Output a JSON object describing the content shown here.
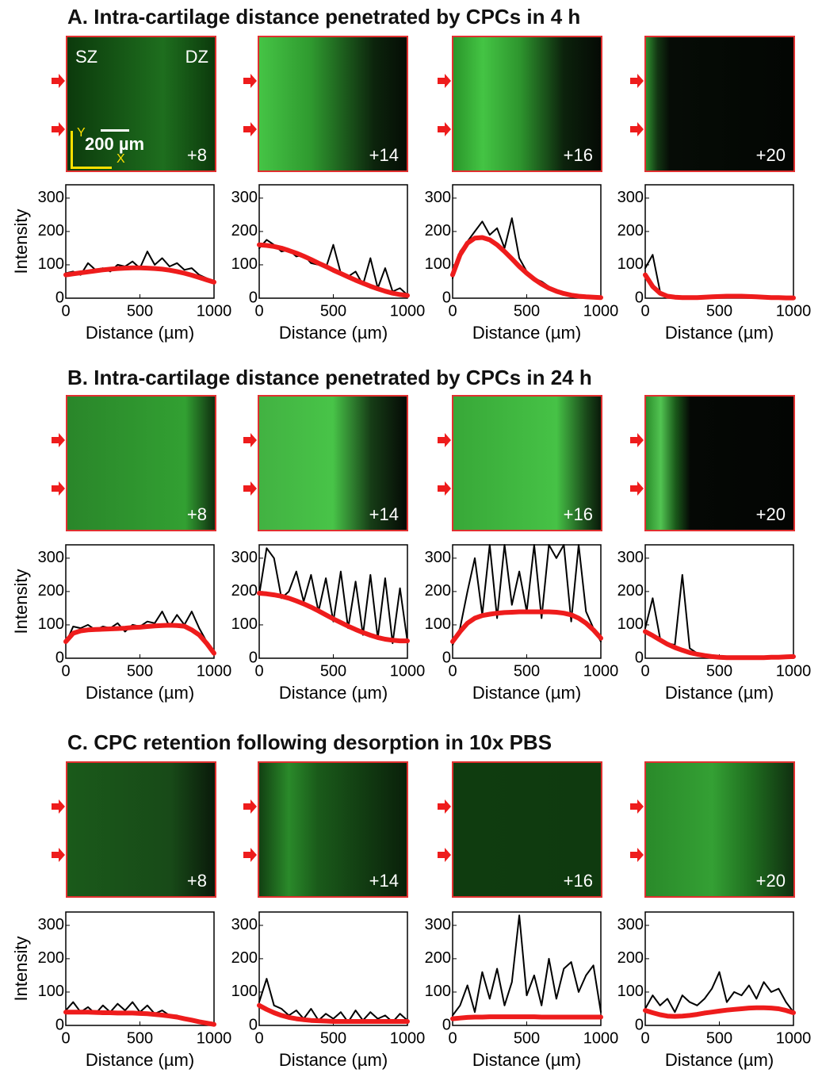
{
  "sections": [
    {
      "title": "A. Intra-cartilage distance penetrated by CPCs in 4 h",
      "images": [
        {
          "number": "+8",
          "zone_left": "SZ",
          "zone_right": "DZ",
          "scale_bar": "200 µm",
          "axis_x": "X",
          "axis_y": "Y"
        },
        {
          "number": "+14"
        },
        {
          "number": "+16"
        },
        {
          "number": "+20"
        }
      ]
    },
    {
      "title": "B. Intra-cartilage distance penetrated by CPCs in 24 h",
      "images": [
        {
          "number": "+8"
        },
        {
          "number": "+14"
        },
        {
          "number": "+16"
        },
        {
          "number": "+20"
        }
      ]
    },
    {
      "title": "C. CPC retention following desorption in 10x PBS",
      "images": [
        {
          "number": "+8"
        },
        {
          "number": "+14"
        },
        {
          "number": "+16"
        },
        {
          "number": "+20"
        }
      ]
    }
  ],
  "chart_data": [
    {
      "type": "line",
      "x_label": "Distance (µm)",
      "y_label": "Intensity",
      "xlim": [
        0,
        1000
      ],
      "xticks": [
        0,
        500,
        1000
      ],
      "ylim": [
        0,
        340
      ],
      "yticks": [
        0,
        100,
        200,
        300
      ],
      "x": [
        0,
        50,
        100,
        150,
        200,
        250,
        300,
        350,
        400,
        450,
        500,
        550,
        600,
        650,
        700,
        750,
        800,
        850,
        900,
        950,
        1000
      ],
      "series": [
        {
          "color": "#000000",
          "values": [
            75,
            80,
            70,
            105,
            85,
            90,
            80,
            100,
            95,
            110,
            90,
            140,
            100,
            120,
            95,
            105,
            85,
            90,
            70,
            60,
            50
          ]
        },
        {
          "color": "#ee1c1c",
          "values": [
            70,
            73,
            76,
            79,
            82,
            85,
            87,
            89,
            90,
            91,
            91,
            90,
            89,
            87,
            84,
            80,
            75,
            69,
            62,
            55,
            48
          ]
        }
      ]
    },
    {
      "type": "line",
      "x_label": "Distance (µm)",
      "xlim": [
        0,
        1000
      ],
      "xticks": [
        0,
        500,
        1000
      ],
      "ylim": [
        0,
        340
      ],
      "yticks": [
        0,
        100,
        200,
        300
      ],
      "x": [
        0,
        50,
        100,
        150,
        200,
        250,
        300,
        350,
        400,
        450,
        500,
        550,
        600,
        650,
        700,
        750,
        800,
        850,
        900,
        950,
        1000
      ],
      "series": [
        {
          "color": "#000000",
          "values": [
            150,
            175,
            160,
            140,
            145,
            125,
            130,
            105,
            100,
            90,
            160,
            75,
            65,
            80,
            40,
            120,
            30,
            90,
            20,
            30,
            10
          ]
        },
        {
          "color": "#ee1c1c",
          "values": [
            160,
            158,
            155,
            150,
            143,
            135,
            126,
            116,
            105,
            95,
            84,
            74,
            64,
            54,
            45,
            36,
            28,
            21,
            15,
            11,
            8
          ]
        }
      ]
    },
    {
      "type": "line",
      "x_label": "Distance (µm)",
      "xlim": [
        0,
        1000
      ],
      "xticks": [
        0,
        500,
        1000
      ],
      "ylim": [
        0,
        340
      ],
      "yticks": [
        0,
        100,
        200,
        300
      ],
      "x": [
        0,
        50,
        100,
        150,
        200,
        250,
        300,
        350,
        400,
        450,
        500,
        550,
        600,
        650,
        700,
        750,
        800,
        850,
        900,
        950,
        1000
      ],
      "series": [
        {
          "color": "#000000",
          "values": [
            60,
            140,
            170,
            200,
            230,
            190,
            210,
            150,
            240,
            120,
            80,
            60,
            50,
            35,
            25,
            18,
            12,
            8,
            5,
            4,
            2
          ]
        },
        {
          "color": "#ee1c1c",
          "values": [
            70,
            130,
            165,
            180,
            182,
            175,
            160,
            140,
            118,
            95,
            75,
            57,
            42,
            30,
            21,
            14,
            9,
            6,
            4,
            3,
            2
          ]
        }
      ]
    },
    {
      "type": "line",
      "x_label": "Distance (µm)",
      "xlim": [
        0,
        1000
      ],
      "xticks": [
        0,
        500,
        1000
      ],
      "ylim": [
        0,
        340
      ],
      "yticks": [
        0,
        100,
        200,
        300
      ],
      "x": [
        0,
        50,
        100,
        150,
        200,
        250,
        300,
        350,
        400,
        450,
        500,
        550,
        600,
        650,
        700,
        750,
        800,
        850,
        900,
        950,
        1000
      ],
      "series": [
        {
          "color": "#000000",
          "values": [
            90,
            130,
            20,
            8,
            5,
            3,
            2,
            2,
            3,
            4,
            5,
            5,
            6,
            6,
            5,
            4,
            3,
            2,
            2,
            1,
            1
          ]
        },
        {
          "color": "#ee1c1c",
          "values": [
            70,
            35,
            15,
            6,
            3,
            2,
            2,
            2,
            3,
            4,
            5,
            6,
            6,
            6,
            5,
            4,
            3,
            2,
            2,
            1,
            1
          ]
        }
      ]
    },
    {
      "type": "line",
      "x_label": "Distance (µm)",
      "y_label": "Intensity",
      "xlim": [
        0,
        1000
      ],
      "xticks": [
        0,
        500,
        1000
      ],
      "ylim": [
        0,
        340
      ],
      "yticks": [
        0,
        100,
        200,
        300
      ],
      "x": [
        0,
        50,
        100,
        150,
        200,
        250,
        300,
        350,
        400,
        450,
        500,
        550,
        600,
        650,
        700,
        750,
        800,
        850,
        900,
        950,
        1000
      ],
      "series": [
        {
          "color": "#000000",
          "values": [
            45,
            95,
            90,
            100,
            85,
            95,
            90,
            105,
            80,
            100,
            95,
            110,
            105,
            140,
            95,
            130,
            100,
            140,
            90,
            50,
            15
          ]
        },
        {
          "color": "#ee1c1c",
          "values": [
            50,
            75,
            82,
            85,
            86,
            87,
            88,
            89,
            90,
            92,
            93,
            95,
            97,
            98,
            99,
            98,
            96,
            85,
            70,
            45,
            15
          ]
        }
      ]
    },
    {
      "type": "line",
      "x_label": "Distance (µm)",
      "xlim": [
        0,
        1000
      ],
      "xticks": [
        0,
        500,
        1000
      ],
      "ylim": [
        0,
        340
      ],
      "yticks": [
        0,
        100,
        200,
        300
      ],
      "x": [
        0,
        50,
        100,
        150,
        200,
        250,
        300,
        350,
        400,
        450,
        500,
        550,
        600,
        650,
        700,
        750,
        800,
        850,
        900,
        950,
        1000
      ],
      "series": [
        {
          "color": "#000000",
          "values": [
            190,
            330,
            300,
            180,
            200,
            260,
            170,
            250,
            140,
            240,
            110,
            260,
            90,
            230,
            70,
            250,
            60,
            240,
            45,
            210,
            50
          ]
        },
        {
          "color": "#ee1c1c",
          "values": [
            195,
            193,
            190,
            186,
            180,
            172,
            163,
            153,
            142,
            130,
            118,
            107,
            96,
            86,
            77,
            69,
            62,
            57,
            54,
            52,
            52
          ]
        }
      ]
    },
    {
      "type": "line",
      "x_label": "Distance (µm)",
      "xlim": [
        0,
        1000
      ],
      "xticks": [
        0,
        500,
        1000
      ],
      "ylim": [
        0,
        340
      ],
      "yticks": [
        0,
        100,
        200,
        300
      ],
      "x": [
        0,
        50,
        100,
        150,
        200,
        250,
        300,
        350,
        400,
        450,
        500,
        550,
        600,
        650,
        700,
        750,
        800,
        850,
        900,
        950,
        1000
      ],
      "series": [
        {
          "color": "#000000",
          "values": [
            40,
            90,
            200,
            300,
            130,
            340,
            120,
            340,
            160,
            260,
            140,
            340,
            120,
            340,
            300,
            340,
            110,
            340,
            140,
            90,
            50
          ]
        },
        {
          "color": "#ee1c1c",
          "values": [
            50,
            80,
            105,
            120,
            128,
            132,
            135,
            137,
            138,
            139,
            139,
            139,
            139,
            139,
            138,
            135,
            130,
            120,
            105,
            85,
            60
          ]
        }
      ]
    },
    {
      "type": "line",
      "x_label": "Distance (µm)",
      "xlim": [
        0,
        1000
      ],
      "xticks": [
        0,
        500,
        1000
      ],
      "ylim": [
        0,
        340
      ],
      "yticks": [
        0,
        100,
        200,
        300
      ],
      "x": [
        0,
        50,
        100,
        150,
        200,
        250,
        300,
        350,
        400,
        450,
        500,
        550,
        600,
        650,
        700,
        750,
        800,
        850,
        900,
        950,
        1000
      ],
      "series": [
        {
          "color": "#000000",
          "values": [
            90,
            180,
            60,
            45,
            40,
            250,
            30,
            15,
            8,
            5,
            3,
            2,
            2,
            2,
            2,
            2,
            2,
            3,
            3,
            4,
            5
          ]
        },
        {
          "color": "#ee1c1c",
          "values": [
            80,
            68,
            55,
            42,
            32,
            24,
            17,
            12,
            8,
            5,
            3,
            2,
            2,
            2,
            2,
            2,
            2,
            3,
            3,
            4,
            5
          ]
        }
      ]
    },
    {
      "type": "line",
      "x_label": "Distance (µm)",
      "y_label": "Intensity",
      "xlim": [
        0,
        1000
      ],
      "xticks": [
        0,
        500,
        1000
      ],
      "ylim": [
        0,
        340
      ],
      "yticks": [
        0,
        100,
        200,
        300
      ],
      "x": [
        0,
        50,
        100,
        150,
        200,
        250,
        300,
        350,
        400,
        450,
        500,
        550,
        600,
        650,
        700,
        750,
        800,
        850,
        900,
        950,
        1000
      ],
      "series": [
        {
          "color": "#000000",
          "values": [
            45,
            70,
            40,
            55,
            35,
            60,
            40,
            65,
            45,
            70,
            40,
            60,
            35,
            45,
            30,
            30,
            20,
            15,
            10,
            8,
            3
          ]
        },
        {
          "color": "#ee1c1c",
          "values": [
            40,
            40,
            40,
            40,
            39,
            38,
            38,
            37,
            37,
            37,
            36,
            35,
            33,
            31,
            28,
            25,
            20,
            16,
            11,
            7,
            3
          ]
        }
      ]
    },
    {
      "type": "line",
      "x_label": "Distance (µm)",
      "xlim": [
        0,
        1000
      ],
      "xticks": [
        0,
        500,
        1000
      ],
      "ylim": [
        0,
        340
      ],
      "yticks": [
        0,
        100,
        200,
        300
      ],
      "x": [
        0,
        50,
        100,
        150,
        200,
        250,
        300,
        350,
        400,
        450,
        500,
        550,
        600,
        650,
        700,
        750,
        800,
        850,
        900,
        950,
        1000
      ],
      "series": [
        {
          "color": "#000000",
          "values": [
            70,
            140,
            60,
            50,
            30,
            45,
            20,
            50,
            15,
            35,
            20,
            40,
            10,
            45,
            15,
            40,
            20,
            30,
            10,
            35,
            15
          ]
        },
        {
          "color": "#ee1c1c",
          "values": [
            60,
            48,
            38,
            30,
            24,
            20,
            17,
            15,
            14,
            13,
            12,
            12,
            12,
            12,
            12,
            12,
            12,
            12,
            12,
            12,
            12
          ]
        }
      ]
    },
    {
      "type": "line",
      "x_label": "Distance (µm)",
      "xlim": [
        0,
        1000
      ],
      "xticks": [
        0,
        500,
        1000
      ],
      "ylim": [
        0,
        340
      ],
      "yticks": [
        0,
        100,
        200,
        300
      ],
      "x": [
        0,
        50,
        100,
        150,
        200,
        250,
        300,
        350,
        400,
        450,
        500,
        550,
        600,
        650,
        700,
        750,
        800,
        850,
        900,
        950,
        1000
      ],
      "series": [
        {
          "color": "#000000",
          "values": [
            30,
            60,
            120,
            40,
            160,
            80,
            170,
            60,
            130,
            330,
            90,
            150,
            60,
            200,
            80,
            170,
            190,
            100,
            150,
            180,
            40
          ]
        },
        {
          "color": "#ee1c1c",
          "values": [
            20,
            22,
            24,
            25,
            25,
            26,
            26,
            26,
            26,
            26,
            26,
            26,
            25,
            25,
            25,
            25,
            25,
            25,
            25,
            25,
            25
          ]
        }
      ]
    },
    {
      "type": "line",
      "x_label": "Distance (µm)",
      "xlim": [
        0,
        1000
      ],
      "xticks": [
        0,
        500,
        1000
      ],
      "ylim": [
        0,
        340
      ],
      "yticks": [
        0,
        100,
        200,
        300
      ],
      "x": [
        0,
        50,
        100,
        150,
        200,
        250,
        300,
        350,
        400,
        450,
        500,
        550,
        600,
        650,
        700,
        750,
        800,
        850,
        900,
        950,
        1000
      ],
      "series": [
        {
          "color": "#000000",
          "values": [
            50,
            90,
            60,
            80,
            40,
            90,
            70,
            60,
            80,
            110,
            160,
            70,
            100,
            90,
            120,
            80,
            130,
            100,
            110,
            70,
            40
          ]
        },
        {
          "color": "#ee1c1c",
          "values": [
            45,
            38,
            32,
            28,
            27,
            28,
            30,
            33,
            37,
            40,
            43,
            46,
            48,
            50,
            52,
            53,
            53,
            52,
            50,
            45,
            38
          ]
        }
      ]
    }
  ]
}
